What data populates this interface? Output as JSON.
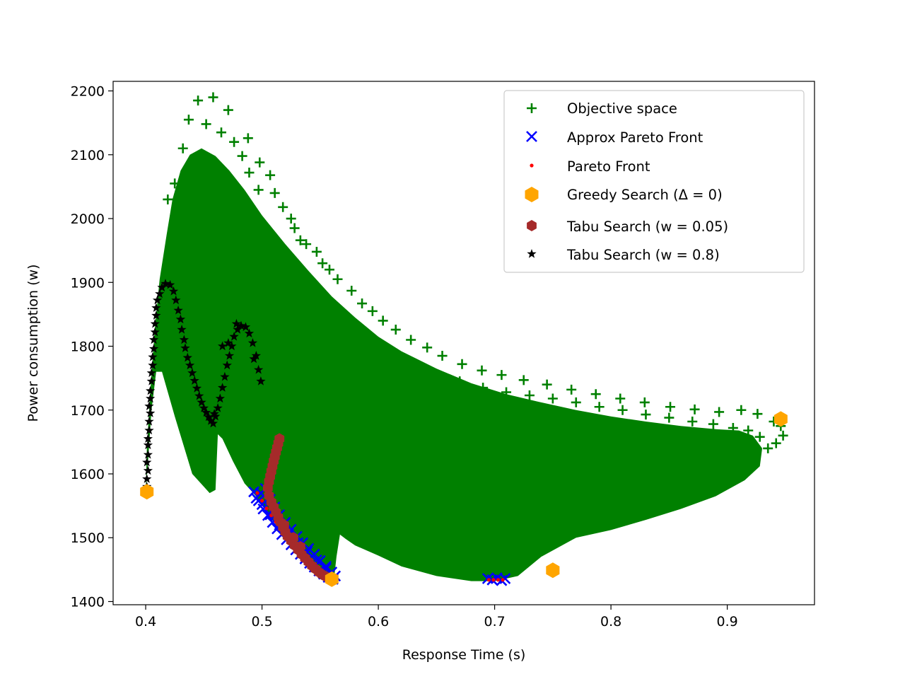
{
  "chart_data": {
    "type": "scatter",
    "title": "",
    "xlabel": "Response Time (s)",
    "ylabel": "Power consumption (w)",
    "xlim": [
      0.372,
      0.975
    ],
    "ylim": [
      1395,
      2215
    ],
    "xticks": [
      0.4,
      0.5,
      0.6,
      0.7,
      0.8,
      0.9
    ],
    "xtick_labels": [
      "0.4",
      "0.5",
      "0.6",
      "0.7",
      "0.8",
      "0.9"
    ],
    "yticks": [
      1400,
      1500,
      1600,
      1700,
      1800,
      1900,
      2000,
      2100,
      2200
    ],
    "ytick_labels": [
      "1400",
      "1500",
      "1600",
      "1700",
      "1800",
      "1900",
      "2000",
      "2100",
      "2200"
    ],
    "grid": false,
    "legend_position": "top-right",
    "colors": {
      "objective": "#008000",
      "approx": "#0000ff",
      "pareto": "#ff0000",
      "greedy": "#ffa500",
      "tabu05": "#a52a2a",
      "tabu8": "#000000"
    },
    "series": [
      {
        "name": "Objective space",
        "key": "objective",
        "marker": "plus",
        "region": "dense scatter cloud",
        "points": [
          [
            0.445,
            2185
          ],
          [
            0.458,
            2190
          ],
          [
            0.471,
            2170
          ],
          [
            0.437,
            2155
          ],
          [
            0.452,
            2148
          ],
          [
            0.465,
            2135
          ],
          [
            0.476,
            2120
          ],
          [
            0.488,
            2126
          ],
          [
            0.483,
            2098
          ],
          [
            0.498,
            2088
          ],
          [
            0.489,
            2072
          ],
          [
            0.507,
            2068
          ],
          [
            0.497,
            2045
          ],
          [
            0.511,
            2040
          ],
          [
            0.518,
            2018
          ],
          [
            0.525,
            2000
          ],
          [
            0.528,
            1985
          ],
          [
            0.533,
            1966
          ],
          [
            0.538,
            1960
          ],
          [
            0.547,
            1948
          ],
          [
            0.552,
            1930
          ],
          [
            0.558,
            1920
          ],
          [
            0.565,
            1905
          ],
          [
            0.577,
            1887
          ],
          [
            0.586,
            1867
          ],
          [
            0.595,
            1855
          ],
          [
            0.604,
            1840
          ],
          [
            0.615,
            1826
          ],
          [
            0.628,
            1810
          ],
          [
            0.642,
            1798
          ],
          [
            0.655,
            1785
          ],
          [
            0.672,
            1772
          ],
          [
            0.689,
            1762
          ],
          [
            0.706,
            1755
          ],
          [
            0.725,
            1747
          ],
          [
            0.745,
            1740
          ],
          [
            0.766,
            1732
          ],
          [
            0.787,
            1725
          ],
          [
            0.808,
            1718
          ],
          [
            0.829,
            1712
          ],
          [
            0.851,
            1705
          ],
          [
            0.872,
            1701
          ],
          [
            0.893,
            1697
          ],
          [
            0.912,
            1700
          ],
          [
            0.926,
            1694
          ],
          [
            0.94,
            1682
          ],
          [
            0.946,
            1675
          ],
          [
            0.948,
            1660
          ],
          [
            0.942,
            1648
          ],
          [
            0.935,
            1640
          ],
          [
            0.928,
            1658
          ],
          [
            0.918,
            1668
          ],
          [
            0.905,
            1672
          ],
          [
            0.888,
            1678
          ],
          [
            0.87,
            1682
          ],
          [
            0.85,
            1688
          ],
          [
            0.83,
            1693
          ],
          [
            0.81,
            1700
          ],
          [
            0.79,
            1705
          ],
          [
            0.77,
            1712
          ],
          [
            0.75,
            1718
          ],
          [
            0.73,
            1723
          ],
          [
            0.71,
            1728
          ],
          [
            0.69,
            1735
          ],
          [
            0.67,
            1745
          ],
          [
            0.65,
            1755
          ],
          [
            0.63,
            1765
          ],
          [
            0.61,
            1778
          ],
          [
            0.59,
            1792
          ],
          [
            0.57,
            1810
          ],
          [
            0.55,
            1835
          ],
          [
            0.53,
            1870
          ],
          [
            0.515,
            1900
          ],
          [
            0.5,
            1935
          ],
          [
            0.485,
            1975
          ],
          [
            0.47,
            2012
          ],
          [
            0.455,
            2050
          ],
          [
            0.442,
            2085
          ],
          [
            0.432,
            2110
          ],
          [
            0.425,
            2055
          ],
          [
            0.419,
            2030
          ]
        ]
      },
      {
        "name": "Approx Pareto Front",
        "key": "approx",
        "marker": "x",
        "points": [
          [
            0.493,
            1572
          ],
          [
            0.497,
            1558
          ],
          [
            0.501,
            1545
          ],
          [
            0.505,
            1535
          ],
          [
            0.509,
            1524
          ],
          [
            0.513,
            1514
          ],
          [
            0.517,
            1505
          ],
          [
            0.521,
            1497
          ],
          [
            0.525,
            1489
          ],
          [
            0.529,
            1481
          ],
          [
            0.533,
            1474
          ],
          [
            0.537,
            1467
          ],
          [
            0.541,
            1460
          ],
          [
            0.545,
            1454
          ],
          [
            0.549,
            1448
          ],
          [
            0.553,
            1443
          ],
          [
            0.557,
            1438
          ],
          [
            0.561,
            1435
          ],
          [
            0.499,
            1570
          ],
          [
            0.503,
            1577
          ],
          [
            0.507,
            1560
          ],
          [
            0.511,
            1548
          ],
          [
            0.515,
            1536
          ],
          [
            0.52,
            1524
          ],
          [
            0.525,
            1513
          ],
          [
            0.53,
            1502
          ],
          [
            0.535,
            1492
          ],
          [
            0.54,
            1483
          ],
          [
            0.545,
            1474
          ],
          [
            0.55,
            1464
          ],
          [
            0.555,
            1455
          ],
          [
            0.56,
            1446
          ],
          [
            0.563,
            1440
          ],
          [
            0.495,
            1562
          ],
          [
            0.5,
            1552
          ],
          [
            0.507,
            1536
          ],
          [
            0.515,
            1520
          ],
          [
            0.523,
            1506
          ],
          [
            0.531,
            1492
          ],
          [
            0.539,
            1478
          ],
          [
            0.547,
            1465
          ],
          [
            0.555,
            1452
          ],
          [
            0.694,
            1436
          ],
          [
            0.698,
            1434
          ],
          [
            0.702,
            1437
          ],
          [
            0.706,
            1433
          ],
          [
            0.709,
            1436
          ]
        ]
      },
      {
        "name": "Pareto Front",
        "key": "pareto",
        "marker": "dot",
        "points": [
          [
            0.496,
            1570
          ],
          [
            0.5,
            1558
          ],
          [
            0.504,
            1546
          ],
          [
            0.508,
            1535
          ],
          [
            0.512,
            1525
          ],
          [
            0.516,
            1515
          ],
          [
            0.52,
            1506
          ],
          [
            0.524,
            1497
          ],
          [
            0.528,
            1489
          ],
          [
            0.532,
            1481
          ],
          [
            0.536,
            1474
          ],
          [
            0.54,
            1467
          ],
          [
            0.544,
            1460
          ],
          [
            0.548,
            1454
          ],
          [
            0.552,
            1448
          ],
          [
            0.556,
            1443
          ],
          [
            0.56,
            1438
          ],
          [
            0.695,
            1434
          ],
          [
            0.699,
            1434
          ],
          [
            0.703,
            1434
          ],
          [
            0.707,
            1434
          ]
        ]
      },
      {
        "name": "Greedy Search (Δ = 0)",
        "key": "greedy",
        "marker": "hexagon",
        "points": [
          [
            0.401,
            1572
          ],
          [
            0.56,
            1435
          ],
          [
            0.75,
            1449
          ],
          [
            0.946,
            1686
          ]
        ]
      },
      {
        "name": "Tabu Search (w = 0.05)",
        "key": "tabu05",
        "marker": "hexagon-small",
        "points": [
          [
            0.515,
            1655
          ],
          [
            0.514,
            1648
          ],
          [
            0.513,
            1641
          ],
          [
            0.512,
            1634
          ],
          [
            0.511,
            1627
          ],
          [
            0.51,
            1620
          ],
          [
            0.509,
            1612
          ],
          [
            0.508,
            1604
          ],
          [
            0.507,
            1596
          ],
          [
            0.506,
            1588
          ],
          [
            0.505,
            1578
          ],
          [
            0.506,
            1566
          ],
          [
            0.508,
            1556
          ],
          [
            0.51,
            1548
          ],
          [
            0.512,
            1540
          ],
          [
            0.514,
            1532
          ],
          [
            0.516,
            1524
          ],
          [
            0.518,
            1516
          ],
          [
            0.52,
            1509
          ],
          [
            0.522,
            1502
          ],
          [
            0.525,
            1495
          ],
          [
            0.528,
            1488
          ],
          [
            0.531,
            1481
          ],
          [
            0.534,
            1474
          ],
          [
            0.537,
            1468
          ],
          [
            0.54,
            1462
          ],
          [
            0.543,
            1456
          ],
          [
            0.546,
            1451
          ],
          [
            0.549,
            1446
          ],
          [
            0.552,
            1442
          ],
          [
            0.555,
            1439
          ],
          [
            0.558,
            1436
          ],
          [
            0.56,
            1434
          ],
          [
            0.519,
            1520
          ],
          [
            0.527,
            1500
          ],
          [
            0.533,
            1486
          ]
        ]
      },
      {
        "name": "Tabu Search (w = 0.8)",
        "key": "tabu8",
        "marker": "star",
        "points": [
          [
            0.401,
            1572
          ],
          [
            0.401,
            1580
          ],
          [
            0.401,
            1592
          ],
          [
            0.402,
            1605
          ],
          [
            0.401,
            1618
          ],
          [
            0.402,
            1630
          ],
          [
            0.402,
            1645
          ],
          [
            0.402,
            1655
          ],
          [
            0.403,
            1668
          ],
          [
            0.403,
            1682
          ],
          [
            0.404,
            1695
          ],
          [
            0.403,
            1706
          ],
          [
            0.404,
            1718
          ],
          [
            0.404,
            1730
          ],
          [
            0.405,
            1745
          ],
          [
            0.405,
            1758
          ],
          [
            0.406,
            1770
          ],
          [
            0.406,
            1783
          ],
          [
            0.407,
            1796
          ],
          [
            0.407,
            1810
          ],
          [
            0.408,
            1822
          ],
          [
            0.408,
            1835
          ],
          [
            0.409,
            1848
          ],
          [
            0.409,
            1860
          ],
          [
            0.41,
            1872
          ],
          [
            0.412,
            1882
          ],
          [
            0.414,
            1892
          ],
          [
            0.417,
            1898
          ],
          [
            0.421,
            1896
          ],
          [
            0.424,
            1886
          ],
          [
            0.426,
            1872
          ],
          [
            0.428,
            1856
          ],
          [
            0.43,
            1842
          ],
          [
            0.431,
            1826
          ],
          [
            0.433,
            1810
          ],
          [
            0.434,
            1797
          ],
          [
            0.436,
            1782
          ],
          [
            0.438,
            1770
          ],
          [
            0.44,
            1758
          ],
          [
            0.442,
            1746
          ],
          [
            0.444,
            1734
          ],
          [
            0.446,
            1722
          ],
          [
            0.448,
            1712
          ],
          [
            0.45,
            1703
          ],
          [
            0.452,
            1696
          ],
          [
            0.454,
            1689
          ],
          [
            0.456,
            1683
          ],
          [
            0.458,
            1679
          ],
          [
            0.46,
            1690
          ],
          [
            0.462,
            1703
          ],
          [
            0.464,
            1718
          ],
          [
            0.466,
            1735
          ],
          [
            0.468,
            1752
          ],
          [
            0.47,
            1770
          ],
          [
            0.472,
            1785
          ],
          [
            0.474,
            1800
          ],
          [
            0.476,
            1815
          ],
          [
            0.479,
            1826
          ],
          [
            0.482,
            1832
          ],
          [
            0.486,
            1830
          ],
          [
            0.489,
            1820
          ],
          [
            0.492,
            1805
          ],
          [
            0.495,
            1785
          ],
          [
            0.497,
            1763
          ],
          [
            0.499,
            1745
          ],
          [
            0.493,
            1780
          ],
          [
            0.478,
            1835
          ],
          [
            0.471,
            1805
          ],
          [
            0.466,
            1800
          ],
          [
            0.459,
            1694
          ]
        ]
      }
    ]
  }
}
